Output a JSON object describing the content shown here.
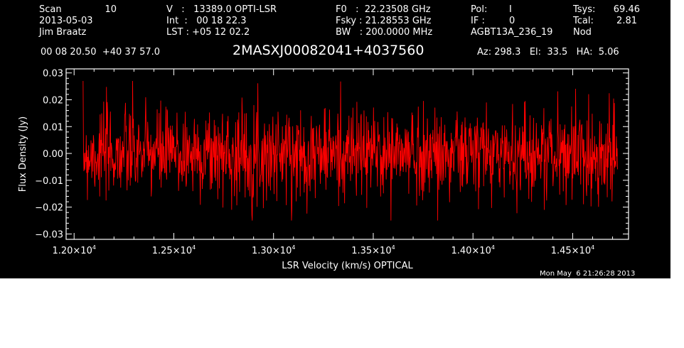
{
  "header": {
    "scan_label": "Scan",
    "scan_number": "10",
    "date": "2013-05-03",
    "observer": "Jim Braatz",
    "velocity_line": "V   :   13389.0 OPTI-LSR",
    "int_line": "Int  :   00 18 22.3",
    "lst_line": "LST : +05 12 02.2",
    "f0_line": "F0   :  22.23508 GHz",
    "fsky_line": "Fsky : 21.28553 GHz",
    "bw_line": "BW   : 200.0000 MHz",
    "pol_label": "Pol:",
    "pol_value": "I",
    "if_label": "IF :",
    "if_value": "0",
    "project": "AGBT13A_236_19",
    "tsys_label": "Tsys:",
    "tsys_value": "69.46",
    "tcal_label": "Tcal:",
    "tcal_value": "2.81",
    "proc": "Nod",
    "coords": "00 08 20.50  +40 37 57.0",
    "source": "2MASXJ00082041+4037560",
    "az_el_ha": "Az: 298.3   El:  33.5   HA:  5.06",
    "timestamp": "Mon May  6 21:26:28 2013"
  },
  "chart_data": {
    "type": "line",
    "xlabel": "LSR Velocity (km/s) OPTICAL",
    "ylabel": "Flux Density (Jy)",
    "xlim": [
      11960,
      14780
    ],
    "ylim": [
      -0.032,
      0.0315
    ],
    "x_ticks": [
      12000,
      12500,
      13000,
      13500,
      14000,
      14500
    ],
    "x_tick_mantissas": [
      "1.20×10",
      "1.25×10",
      "1.30×10",
      "1.35×10",
      "1.40×10",
      "1.45×10"
    ],
    "x_tick_exponent": "4",
    "y_ticks": [
      0.03,
      0.02,
      0.01,
      0.0,
      -0.01,
      -0.02,
      -0.03
    ],
    "y_tick_labels": [
      "0.03",
      "0.02",
      "0.01",
      "0.00",
      "−0.01",
      "−0.02",
      "−0.03"
    ],
    "series_color": "#ff0000",
    "axis_color": "#ffffff",
    "background": "#000000",
    "grid": false,
    "series": [
      {
        "x_range": [
          12045,
          14725
        ],
        "noise_rms": 0.0085,
        "peak_max": 0.027,
        "peak_min": -0.025,
        "n_points": 1350
      }
    ]
  }
}
